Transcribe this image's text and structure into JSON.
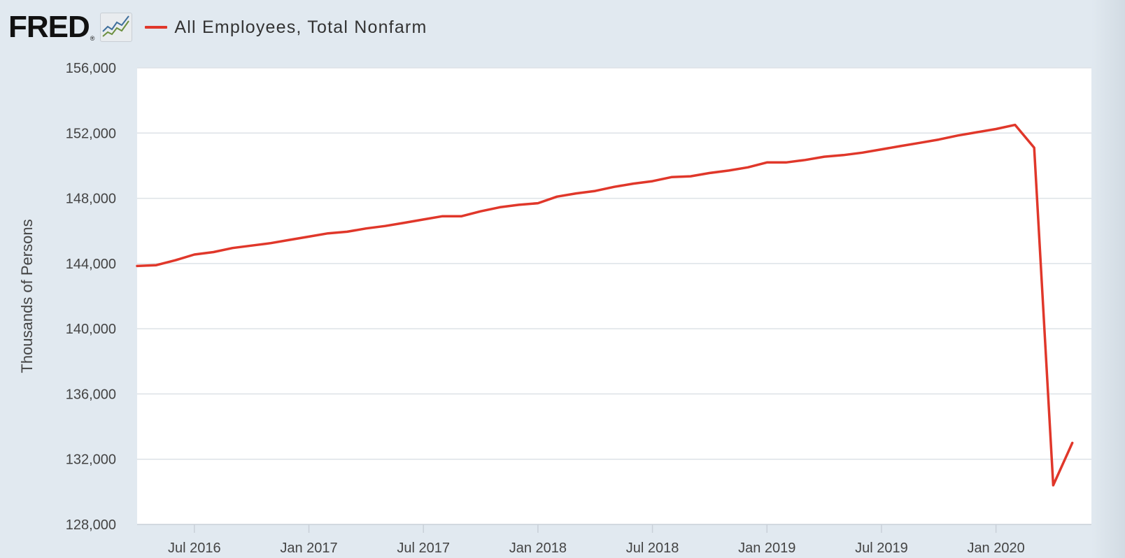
{
  "brand": {
    "logo_text": "FRED",
    "registered_mark": "®",
    "logo_icon": "line-graph-icon"
  },
  "colors": {
    "background": "#e1e9f0",
    "plot_background": "#ffffff",
    "series": "#e0372a",
    "grid": "#dde2e7"
  },
  "chart_data": {
    "type": "line",
    "title": "",
    "ylabel": "Thousands of Persons",
    "xlabel": "",
    "ylim": [
      128000,
      156000
    ],
    "yticks": [
      128000,
      132000,
      136000,
      140000,
      144000,
      148000,
      152000,
      156000
    ],
    "ytick_labels": [
      "128,000",
      "132,000",
      "136,000",
      "140,000",
      "144,000",
      "148,000",
      "152,000",
      "156,000"
    ],
    "xlim": [
      "2016-04",
      "2020-06"
    ],
    "xticks": [
      "2016-07",
      "2017-01",
      "2017-07",
      "2018-01",
      "2018-07",
      "2019-01",
      "2019-07",
      "2020-01"
    ],
    "xtick_labels": [
      "Jul 2016",
      "Jan 2017",
      "Jul 2017",
      "Jan 2018",
      "Jul 2018",
      "Jan 2019",
      "Jul 2019",
      "Jan 2020"
    ],
    "grid": true,
    "legend": "top-left",
    "series": [
      {
        "name": "All Employees, Total Nonfarm",
        "color": "#e0372a",
        "points": [
          [
            "2016-04",
            143850
          ],
          [
            "2016-05",
            143900
          ],
          [
            "2016-06",
            144200
          ],
          [
            "2016-07",
            144550
          ],
          [
            "2016-08",
            144700
          ],
          [
            "2016-09",
            144950
          ],
          [
            "2016-10",
            145100
          ],
          [
            "2016-11",
            145250
          ],
          [
            "2016-12",
            145450
          ],
          [
            "2017-01",
            145650
          ],
          [
            "2017-02",
            145850
          ],
          [
            "2017-03",
            145950
          ],
          [
            "2017-04",
            146150
          ],
          [
            "2017-05",
            146300
          ],
          [
            "2017-06",
            146500
          ],
          [
            "2017-07",
            146700
          ],
          [
            "2017-08",
            146900
          ],
          [
            "2017-09",
            146900
          ],
          [
            "2017-10",
            147200
          ],
          [
            "2017-11",
            147450
          ],
          [
            "2017-12",
            147600
          ],
          [
            "2018-01",
            147700
          ],
          [
            "2018-02",
            148100
          ],
          [
            "2018-03",
            148300
          ],
          [
            "2018-04",
            148450
          ],
          [
            "2018-05",
            148700
          ],
          [
            "2018-06",
            148900
          ],
          [
            "2018-07",
            149050
          ],
          [
            "2018-08",
            149300
          ],
          [
            "2018-09",
            149350
          ],
          [
            "2018-10",
            149550
          ],
          [
            "2018-11",
            149700
          ],
          [
            "2018-12",
            149900
          ],
          [
            "2019-01",
            150200
          ],
          [
            "2019-02",
            150200
          ],
          [
            "2019-03",
            150350
          ],
          [
            "2019-04",
            150550
          ],
          [
            "2019-05",
            150650
          ],
          [
            "2019-06",
            150800
          ],
          [
            "2019-07",
            151000
          ],
          [
            "2019-08",
            151200
          ],
          [
            "2019-09",
            151400
          ],
          [
            "2019-10",
            151600
          ],
          [
            "2019-11",
            151850
          ],
          [
            "2019-12",
            152050
          ],
          [
            "2020-01",
            152250
          ],
          [
            "2020-02",
            152500
          ],
          [
            "2020-03",
            151100
          ],
          [
            "2020-04",
            130400
          ],
          [
            "2020-05",
            133000
          ]
        ]
      }
    ]
  }
}
